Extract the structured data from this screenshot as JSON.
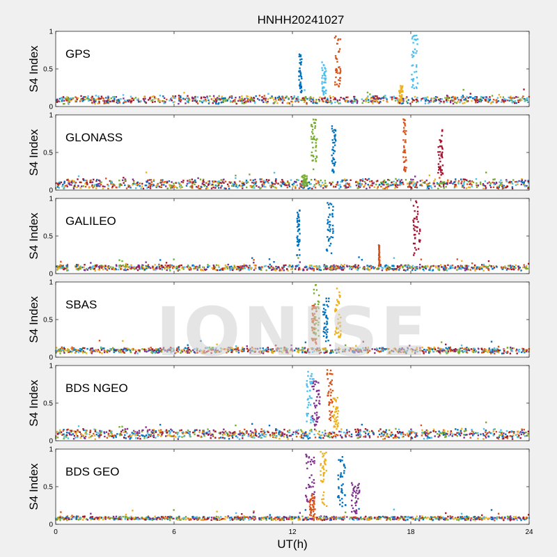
{
  "chart_data": {
    "type": "scatter",
    "title": "HNHH20241027",
    "xlabel": "UT(h)",
    "ylabel": "S4 Index",
    "xlim": [
      0,
      24
    ],
    "ylim": [
      0,
      1
    ],
    "xticks": [
      0,
      6,
      12,
      18,
      24
    ],
    "yticks": [
      0,
      0.5,
      1
    ],
    "ytick_labels": [
      "0",
      "0.5",
      "1"
    ],
    "grid": false,
    "watermark": "IONISE",
    "colors": [
      "#0072bd",
      "#d95319",
      "#edb120",
      "#7e2f8e",
      "#77ac30",
      "#4dbeee",
      "#a2142f"
    ],
    "panels": [
      {
        "label": "GPS",
        "baseline": 0.09,
        "noise": 0.04,
        "events": [
          {
            "x": 12.4,
            "y": 0.72,
            "color": 0,
            "spread": 0.15
          },
          {
            "x": 14.3,
            "y": 0.95,
            "color": 1,
            "spread": 0.3
          },
          {
            "x": 13.6,
            "y": 0.6,
            "color": 5,
            "spread": 0.25
          },
          {
            "x": 18.2,
            "y": 0.95,
            "color": 5,
            "spread": 0.3
          },
          {
            "x": 17.5,
            "y": 0.28,
            "color": 2,
            "spread": 0.2
          }
        ]
      },
      {
        "label": "GLONASS",
        "baseline": 0.08,
        "noise": 0.05,
        "events": [
          {
            "x": 13.1,
            "y": 0.95,
            "color": 4,
            "spread": 0.3
          },
          {
            "x": 14.1,
            "y": 0.85,
            "color": 0,
            "spread": 0.2
          },
          {
            "x": 17.7,
            "y": 0.95,
            "color": 1,
            "spread": 0.15
          },
          {
            "x": 19.5,
            "y": 0.8,
            "color": 6,
            "spread": 0.25
          },
          {
            "x": 12.6,
            "y": 0.2,
            "color": 4,
            "spread": 0.3
          }
        ]
      },
      {
        "label": "GALILEO",
        "baseline": 0.08,
        "noise": 0.03,
        "events": [
          {
            "x": 12.3,
            "y": 0.9,
            "color": 0,
            "spread": 0.15
          },
          {
            "x": 13.9,
            "y": 0.95,
            "color": 0,
            "spread": 0.35
          },
          {
            "x": 18.3,
            "y": 0.98,
            "color": 6,
            "spread": 0.35
          },
          {
            "x": 16.4,
            "y": 0.38,
            "color": 1,
            "spread": 0.05
          }
        ]
      },
      {
        "label": "SBAS",
        "baseline": 0.09,
        "noise": 0.03,
        "events": [
          {
            "x": 13.2,
            "y": 0.97,
            "color": 4,
            "spread": 0.3
          },
          {
            "x": 14.3,
            "y": 0.95,
            "color": 2,
            "spread": 0.3
          },
          {
            "x": 13.7,
            "y": 0.8,
            "color": 0,
            "spread": 0.3
          },
          {
            "x": 13.1,
            "y": 0.7,
            "color": 1,
            "spread": 0.25
          }
        ]
      },
      {
        "label": "BDS NGEO",
        "baseline": 0.09,
        "noise": 0.05,
        "events": [
          {
            "x": 12.9,
            "y": 0.95,
            "color": 5,
            "spread": 0.35
          },
          {
            "x": 13.2,
            "y": 0.8,
            "color": 3,
            "spread": 0.4
          },
          {
            "x": 13.9,
            "y": 0.95,
            "color": 1,
            "spread": 0.3
          },
          {
            "x": 14.2,
            "y": 0.6,
            "color": 2,
            "spread": 0.25
          }
        ]
      },
      {
        "label": "BDS GEO",
        "baseline": 0.08,
        "noise": 0.02,
        "events": [
          {
            "x": 12.9,
            "y": 0.95,
            "color": 3,
            "spread": 0.45
          },
          {
            "x": 13.6,
            "y": 0.97,
            "color": 2,
            "spread": 0.35
          },
          {
            "x": 14.5,
            "y": 0.9,
            "color": 0,
            "spread": 0.4
          },
          {
            "x": 15.2,
            "y": 0.55,
            "color": 3,
            "spread": 0.4
          },
          {
            "x": 13.0,
            "y": 0.4,
            "color": 1,
            "spread": 0.3
          }
        ]
      }
    ]
  }
}
